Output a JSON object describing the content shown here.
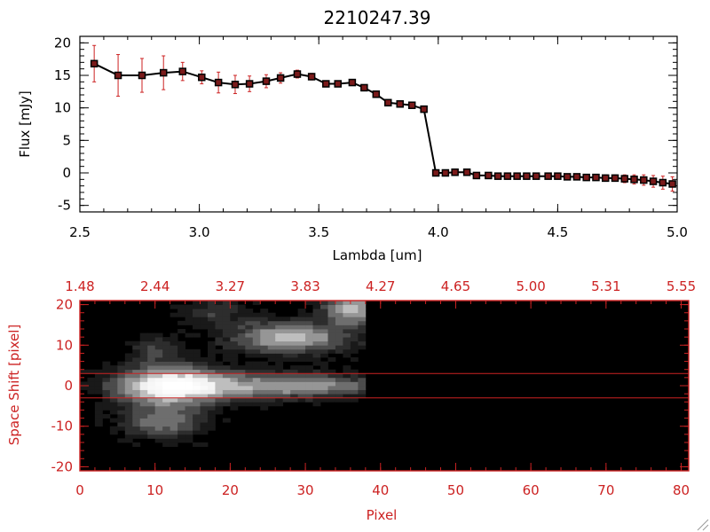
{
  "colors": {
    "ink": "#000000",
    "accent": "#cc2222",
    "marker": "#7a1a1a",
    "background": "#ffffff"
  },
  "chart_data": [
    {
      "type": "line",
      "title": "2210247.39",
      "xlabel": "Lambda [um]",
      "ylabel": "Flux [mJy]",
      "xlim": [
        2.5,
        5.0
      ],
      "ylim": [
        -6,
        21
      ],
      "xticks": [
        {
          "value": 2.5,
          "label": "2.5"
        },
        {
          "value": 3.0,
          "label": "3.0"
        },
        {
          "value": 3.5,
          "label": "3.5"
        },
        {
          "value": 4.0,
          "label": "4.0"
        },
        {
          "value": 4.5,
          "label": "4.5"
        },
        {
          "value": 5.0,
          "label": "5.0"
        }
      ],
      "yticks": [
        {
          "value": -5,
          "label": "-5"
        },
        {
          "value": 0,
          "label": "0"
        },
        {
          "value": 5,
          "label": "5"
        },
        {
          "value": 10,
          "label": "10"
        },
        {
          "value": 15,
          "label": "15"
        },
        {
          "value": 20,
          "label": "20"
        }
      ],
      "series": [
        {
          "x": [
            2.56,
            2.66,
            2.76,
            2.85,
            2.93,
            3.01,
            3.08,
            3.15,
            3.21,
            3.28,
            3.34,
            3.41,
            3.47,
            3.53,
            3.58,
            3.64,
            3.69,
            3.74,
            3.79,
            3.84,
            3.89,
            3.94,
            3.99,
            4.03,
            4.07,
            4.12,
            4.16,
            4.21,
            4.25,
            4.29,
            4.33,
            4.37,
            4.41,
            4.46,
            4.5,
            4.54,
            4.58,
            4.62,
            4.66,
            4.7,
            4.74,
            4.78,
            4.82,
            4.86,
            4.9,
            4.94,
            4.98
          ],
          "y": [
            16.8,
            15.0,
            15.0,
            15.4,
            15.6,
            14.7,
            13.9,
            13.6,
            13.7,
            14.1,
            14.6,
            15.2,
            14.8,
            13.7,
            13.7,
            13.9,
            13.1,
            12.1,
            10.8,
            10.6,
            10.4,
            9.8,
            0.0,
            0.0,
            0.1,
            0.1,
            -0.4,
            -0.4,
            -0.5,
            -0.5,
            -0.5,
            -0.5,
            -0.5,
            -0.5,
            -0.5,
            -0.6,
            -0.6,
            -0.7,
            -0.7,
            -0.8,
            -0.8,
            -0.9,
            -1.0,
            -1.1,
            -1.3,
            -1.5,
            -1.7
          ],
          "err": [
            2.8,
            3.2,
            2.6,
            2.6,
            1.4,
            1.0,
            1.6,
            1.4,
            1.2,
            1.0,
            0.8,
            0.6,
            0.5,
            0.4,
            0.4,
            0.4,
            0.4,
            0.4,
            0.3,
            0.3,
            0.3,
            0.3,
            0.3,
            0.2,
            0.2,
            0.2,
            0.2,
            0.2,
            0.2,
            0.2,
            0.2,
            0.2,
            0.2,
            0.2,
            0.3,
            0.3,
            0.3,
            0.4,
            0.4,
            0.5,
            0.5,
            0.6,
            0.7,
            0.8,
            0.9,
            1.0,
            1.1
          ]
        }
      ]
    },
    {
      "type": "heatmap",
      "xlabel": "Pixel",
      "ylabel": "Space Shift [pixel]",
      "xlim": [
        0,
        81
      ],
      "ylim": [
        -21,
        21
      ],
      "xticks": [
        {
          "value": 0,
          "label": "0"
        },
        {
          "value": 10,
          "label": "10"
        },
        {
          "value": 20,
          "label": "20"
        },
        {
          "value": 30,
          "label": "30"
        },
        {
          "value": 40,
          "label": "40"
        },
        {
          "value": 50,
          "label": "50"
        },
        {
          "value": 60,
          "label": "60"
        },
        {
          "value": 70,
          "label": "70"
        },
        {
          "value": 80,
          "label": "80"
        }
      ],
      "xticks_top": [
        "1.48",
        "2.44",
        "3.27",
        "3.83",
        "4.27",
        "4.65",
        "5.00",
        "5.31",
        "5.55"
      ],
      "yticks": [
        {
          "value": -20,
          "label": "-20"
        },
        {
          "value": -10,
          "label": "-10"
        },
        {
          "value": 0,
          "label": "0"
        },
        {
          "value": 10,
          "label": "10"
        },
        {
          "value": 20,
          "label": "20"
        }
      ],
      "extraction_aperture": [
        -3,
        3
      ],
      "data_extent_pixel": [
        0,
        38
      ],
      "blobs": [
        {
          "x": 12,
          "y": 0,
          "sx": 4.5,
          "sy": 3.2,
          "amp": 0.85
        },
        {
          "x": 22,
          "y": 0,
          "sx": 8,
          "sy": 2.2,
          "amp": 0.45
        },
        {
          "x": 33,
          "y": 0,
          "sx": 5,
          "sy": 1.6,
          "amp": 0.3
        },
        {
          "x": 11,
          "y": -9,
          "sx": 3.5,
          "sy": 2.5,
          "amp": 0.4
        },
        {
          "x": 10,
          "y": 9,
          "sx": 2,
          "sy": 2,
          "amp": 0.22
        },
        {
          "x": 28,
          "y": 12,
          "sx": 5,
          "sy": 2.6,
          "amp": 0.6
        },
        {
          "x": 36,
          "y": 19,
          "sx": 2.2,
          "sy": 2.4,
          "amp": 0.65
        },
        {
          "x": 18,
          "y": 18,
          "sx": 3,
          "sy": 2.5,
          "amp": 0.18
        }
      ]
    }
  ]
}
